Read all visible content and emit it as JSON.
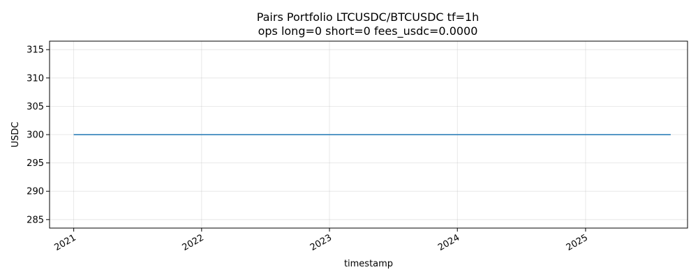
{
  "chart_data": {
    "type": "line",
    "title": "Pairs Portfolio LTCUSDC/BTCUSDC tf=1h",
    "subtitle": "ops long=0 short=0 fees_usdc=0.0000",
    "xlabel": "timestamp",
    "ylabel": "USDC",
    "x_ticks": [
      "2021",
      "2022",
      "2023",
      "2024",
      "2025"
    ],
    "y_ticks": [
      285,
      290,
      295,
      300,
      305,
      310,
      315
    ],
    "ylim": [
      283.5,
      316.5
    ],
    "xlim": [
      "2020-10-24",
      "2025-10-19"
    ],
    "grid": true,
    "series": [
      {
        "color": "#1f77b4",
        "x": [
          "2021-01-01",
          "2025-09-01"
        ],
        "y": [
          300,
          300
        ]
      }
    ]
  }
}
